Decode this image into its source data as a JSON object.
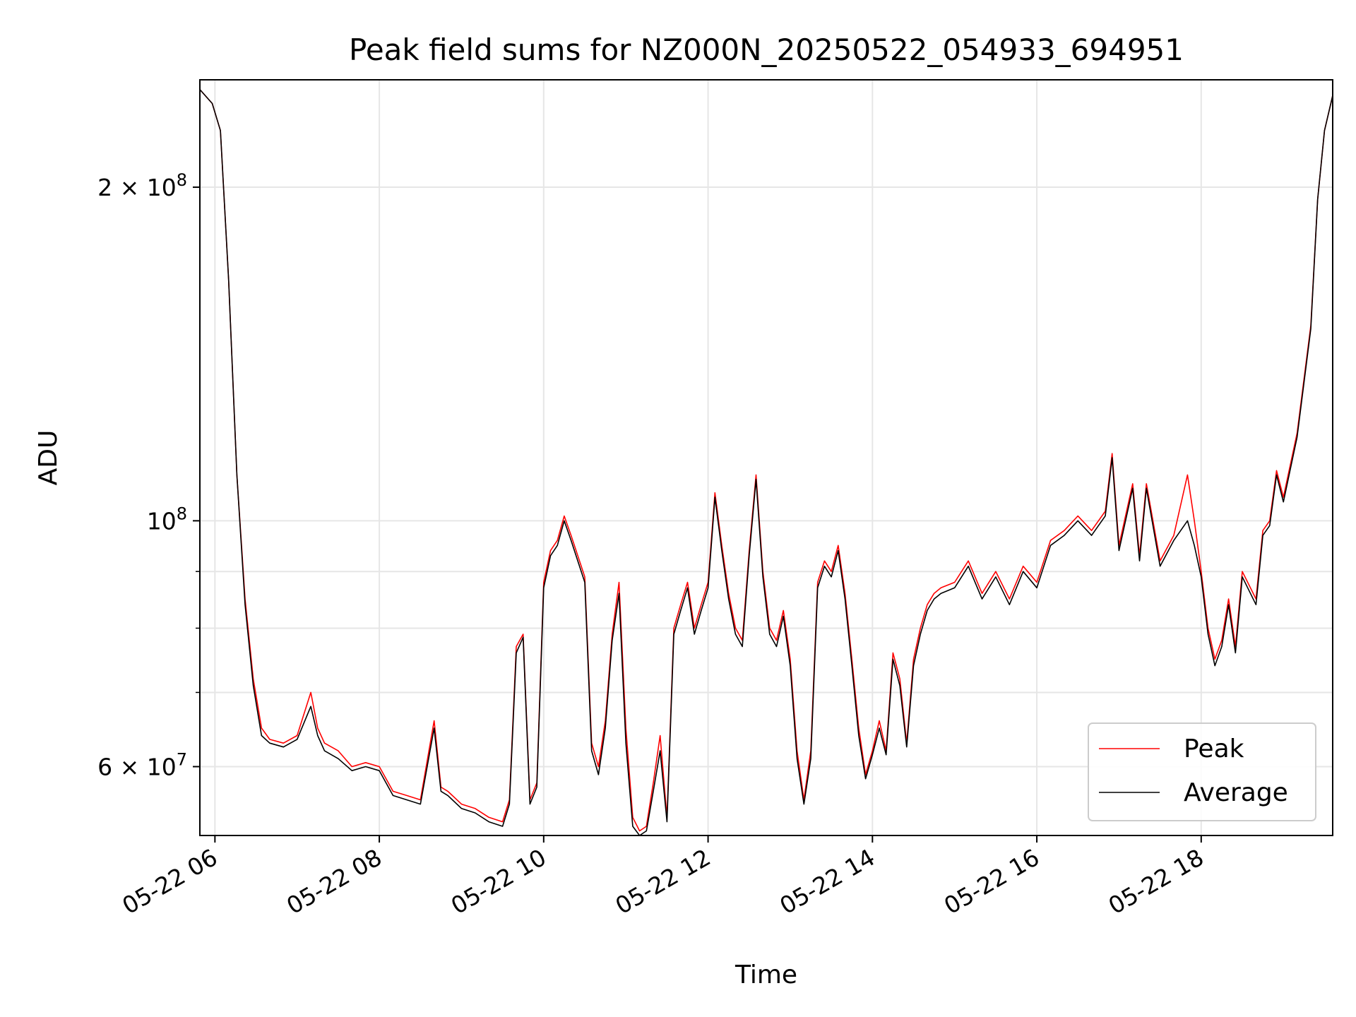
{
  "chart_data": {
    "type": "line",
    "title": "Peak field sums for NZ000N_20250522_054933_694951",
    "xlabel": "Time",
    "ylabel": "ADU",
    "yscale": "log",
    "ylim": [
      52000000,
      250000000
    ],
    "xlim": [
      "2025-05-22 05:49",
      "2025-05-22 19:36"
    ],
    "x_ticks": [
      "05-22 06",
      "05-22 08",
      "05-22 10",
      "05-22 12",
      "05-22 14",
      "05-22 16",
      "05-22 18"
    ],
    "y_ticks": [
      {
        "value": 200000000,
        "mantissa": "2",
        "exp": "8"
      },
      {
        "value": 100000000,
        "mantissa": "",
        "exp": "8"
      },
      {
        "value": 60000000,
        "mantissa": "6",
        "exp": "7"
      }
    ],
    "grid": true,
    "legend_position": "lower-right",
    "x": [
      "05:49",
      "05:58",
      "06:04",
      "06:10",
      "06:16",
      "06:22",
      "06:28",
      "06:34",
      "06:40",
      "06:50",
      "07:00",
      "07:10",
      "07:15",
      "07:20",
      "07:30",
      "07:40",
      "07:50",
      "08:00",
      "08:10",
      "08:20",
      "08:30",
      "08:40",
      "08:45",
      "08:50",
      "09:00",
      "09:10",
      "09:20",
      "09:30",
      "09:35",
      "09:40",
      "09:45",
      "09:50",
      "09:55",
      "10:00",
      "10:05",
      "10:10",
      "10:15",
      "10:20",
      "10:30",
      "10:35",
      "10:40",
      "10:45",
      "10:50",
      "10:55",
      "11:00",
      "11:05",
      "11:10",
      "11:15",
      "11:20",
      "11:25",
      "11:30",
      "11:35",
      "11:40",
      "11:45",
      "11:50",
      "11:55",
      "12:00",
      "12:05",
      "12:10",
      "12:15",
      "12:20",
      "12:25",
      "12:30",
      "12:35",
      "12:40",
      "12:45",
      "12:50",
      "12:55",
      "13:00",
      "13:05",
      "13:10",
      "13:15",
      "13:20",
      "13:25",
      "13:30",
      "13:35",
      "13:40",
      "13:45",
      "13:50",
      "13:55",
      "14:00",
      "14:05",
      "14:10",
      "14:15",
      "14:20",
      "14:25",
      "14:30",
      "14:35",
      "14:40",
      "14:45",
      "14:50",
      "15:00",
      "15:10",
      "15:20",
      "15:30",
      "15:40",
      "15:50",
      "16:00",
      "16:10",
      "16:20",
      "16:30",
      "16:40",
      "16:50",
      "16:55",
      "17:00",
      "17:10",
      "17:15",
      "17:20",
      "17:30",
      "17:40",
      "17:50",
      "17:55",
      "18:00",
      "18:05",
      "18:10",
      "18:15",
      "18:20",
      "18:25",
      "18:30",
      "18:40",
      "18:45",
      "18:50",
      "18:55",
      "19:00",
      "19:10",
      "19:20",
      "19:25",
      "19:30",
      "19:36"
    ],
    "series": [
      {
        "name": "Peak",
        "color": "#ff0000",
        "values": [
          245000000,
          238000000,
          225000000,
          165000000,
          110000000,
          85000000,
          72000000,
          65000000,
          63500000,
          63000000,
          64000000,
          70000000,
          65000000,
          63000000,
          62000000,
          60000000,
          60500000,
          60000000,
          57000000,
          56500000,
          56000000,
          66000000,
          57500000,
          57000000,
          55500000,
          55000000,
          54000000,
          53500000,
          56000000,
          77000000,
          79000000,
          56000000,
          58000000,
          88000000,
          94000000,
          96000000,
          101000000,
          97000000,
          89000000,
          63000000,
          60000000,
          66000000,
          79000000,
          88000000,
          65000000,
          54000000,
          52500000,
          53000000,
          58000000,
          64000000,
          54000000,
          80000000,
          84000000,
          88000000,
          80000000,
          84000000,
          88000000,
          106000000,
          95000000,
          86000000,
          80000000,
          78000000,
          94000000,
          110000000,
          90000000,
          80000000,
          78000000,
          83000000,
          75000000,
          62000000,
          56000000,
          62000000,
          88000000,
          92000000,
          90000000,
          95000000,
          86000000,
          75000000,
          65000000,
          59000000,
          62000000,
          66000000,
          62000000,
          76000000,
          72000000,
          63000000,
          75000000,
          80000000,
          84000000,
          86000000,
          87000000,
          88000000,
          92000000,
          86000000,
          90000000,
          85000000,
          91000000,
          88000000,
          96000000,
          98000000,
          101000000,
          98000000,
          102000000,
          115000000,
          95000000,
          108000000,
          93000000,
          108000000,
          92000000,
          97000000,
          110000000,
          100000000,
          90000000,
          80000000,
          75000000,
          78000000,
          85000000,
          77000000,
          90000000,
          85000000,
          98000000,
          100000000,
          111000000,
          105000000,
          120000000,
          150000000,
          195000000,
          225000000,
          242000000
        ]
      },
      {
        "name": "Average",
        "color": "#000000",
        "values": [
          245000000,
          238000000,
          225000000,
          165000000,
          110000000,
          84000000,
          71000000,
          64000000,
          63000000,
          62500000,
          63500000,
          68000000,
          64000000,
          62000000,
          61000000,
          59500000,
          60000000,
          59500000,
          56500000,
          56000000,
          55500000,
          65000000,
          57000000,
          56500000,
          55000000,
          54500000,
          53500000,
          53000000,
          55500000,
          76000000,
          78500000,
          55500000,
          57500000,
          87000000,
          93000000,
          95000000,
          100000000,
          96000000,
          88000000,
          62000000,
          59000000,
          65000000,
          78000000,
          86000000,
          63000000,
          53000000,
          52000000,
          52500000,
          57000000,
          62000000,
          53500000,
          79000000,
          83000000,
          87000000,
          79000000,
          83000000,
          87000000,
          105000000,
          94000000,
          85000000,
          79000000,
          77000000,
          93000000,
          109000000,
          89000000,
          79000000,
          77000000,
          82000000,
          74000000,
          61000000,
          55500000,
          61000000,
          87000000,
          91000000,
          89000000,
          94000000,
          85000000,
          74000000,
          64000000,
          58500000,
          61500000,
          65000000,
          61500000,
          75000000,
          71000000,
          62500000,
          74000000,
          79000000,
          83000000,
          85000000,
          86000000,
          87000000,
          91000000,
          85000000,
          89000000,
          84000000,
          90000000,
          87000000,
          95000000,
          97000000,
          100000000,
          97000000,
          101000000,
          114000000,
          94000000,
          107000000,
          92000000,
          107000000,
          91000000,
          96000000,
          100000000,
          95000000,
          89000000,
          79000000,
          74000000,
          77000000,
          84000000,
          76000000,
          89000000,
          84000000,
          97000000,
          99000000,
          110000000,
          104000000,
          119000000,
          149000000,
          195000000,
          225000000,
          242000000
        ]
      }
    ]
  }
}
